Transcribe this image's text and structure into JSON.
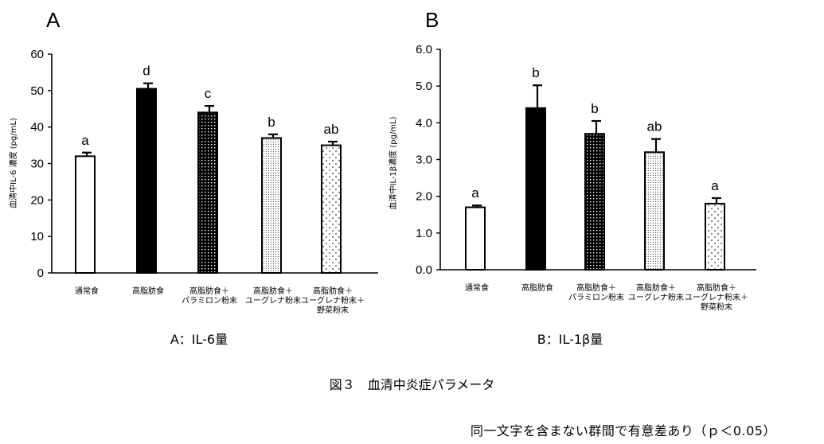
{
  "figure_caption": "図３　血清中炎症パラメータ",
  "footnote": "同一文字を含まない群間で有意差あり（ｐ＜0.05）",
  "colors": {
    "axis": "#000000",
    "bar_stroke": "#000000",
    "background": "#ffffff"
  },
  "chart_data": [
    {
      "type": "bar",
      "panel_label": "A",
      "subtitle": "A：IL-6量",
      "ylabel": "血清中IL-6 濃度 (pg/mL)",
      "xlabel": "",
      "ylim": [
        0,
        60
      ],
      "yticks": [
        0,
        10,
        20,
        30,
        40,
        50,
        60
      ],
      "ytick_labels": [
        "0",
        "10",
        "20",
        "30",
        "40",
        "50",
        "60"
      ],
      "categories": [
        [
          "通常食"
        ],
        [
          "高脂肪食"
        ],
        [
          "高脂肪食＋",
          "パラミロン粉末"
        ],
        [
          "高脂肪食＋",
          "ユーグレナ粉末"
        ],
        [
          "高脂肪食＋",
          "ユーグレナ粉末＋",
          "野菜粉末"
        ]
      ],
      "values": [
        32,
        50.5,
        44,
        37,
        35
      ],
      "errors": [
        1,
        1.5,
        1.8,
        1,
        1
      ],
      "significance_letters": [
        "a",
        "d",
        "c",
        "b",
        "ab"
      ],
      "fills": [
        "white",
        "solid-black",
        "dense-white-dots-on-black",
        "fine-dots",
        "sparse-dots"
      ],
      "grid": false,
      "legend": "none"
    },
    {
      "type": "bar",
      "panel_label": "B",
      "subtitle": "B：IL-1β量",
      "ylabel": "血清中IL-1β濃度 (pg/mL)",
      "xlabel": "",
      "ylim": [
        0,
        6
      ],
      "yticks": [
        0,
        1,
        2,
        3,
        4,
        5,
        6
      ],
      "ytick_labels": [
        "0.0",
        "1.0",
        "2.0",
        "3.0",
        "4.0",
        "5.0",
        "6.0"
      ],
      "categories": [
        [
          "通常食"
        ],
        [
          "高脂肪食"
        ],
        [
          "高脂肪食＋",
          "パラミロン粉末"
        ],
        [
          "高脂肪食＋",
          "ユーグレナ粉末"
        ],
        [
          "高脂肪食＋",
          "ユーグレナ粉末＋",
          "野菜粉末"
        ]
      ],
      "values": [
        1.7,
        4.4,
        3.7,
        3.2,
        1.8
      ],
      "errors": [
        0.05,
        0.62,
        0.35,
        0.36,
        0.15
      ],
      "significance_letters": [
        "a",
        "b",
        "b",
        "ab",
        "a"
      ],
      "fills": [
        "white",
        "solid-black",
        "dense-white-dots-on-black",
        "fine-dots",
        "sparse-dots"
      ],
      "grid": false,
      "legend": "none"
    }
  ]
}
